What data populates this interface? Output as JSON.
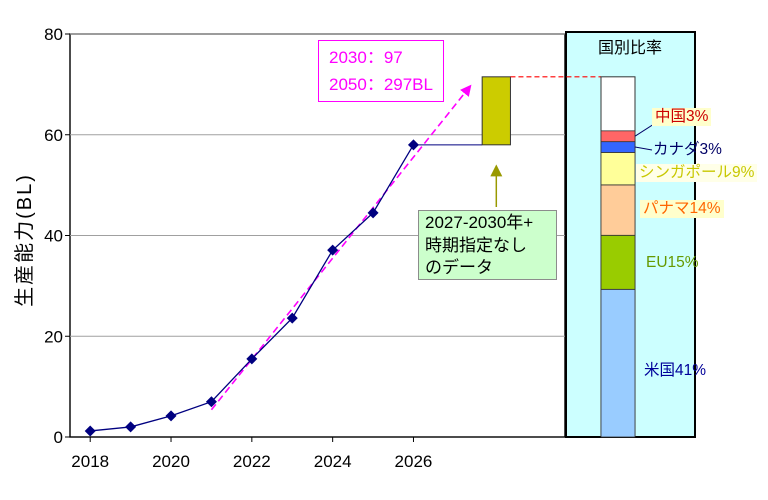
{
  "chart_data": [
    {
      "type": "line",
      "ylabel": "生産能力(BL)",
      "xlim": [
        2017.5,
        2029.75
      ],
      "ylim": [
        0,
        80
      ],
      "x_ticks": [
        2018,
        2020,
        2022,
        2024,
        2026
      ],
      "y_ticks": [
        0,
        20,
        40,
        60,
        80
      ],
      "grid": "horizontal",
      "series": [
        {
          "x": [
            2018,
            2019,
            2020,
            2021,
            2022,
            2023,
            2024,
            2025,
            2026
          ],
          "values": [
            1.2,
            2,
            4.2,
            7,
            15.5,
            23.6,
            37.1,
            44.5,
            58
          ],
          "color": "#000080",
          "marker": "diamond"
        }
      ],
      "trend_arrow": {
        "from": [
          2021,
          5.4
        ],
        "to": [
          2027.4,
          69.6
        ],
        "color": "#ff00ff"
      },
      "range_box": {
        "x": [
          2027.7,
          2028.4
        ],
        "low": 58,
        "high": 71.5,
        "color": "#cccc00"
      },
      "annotations": {
        "projection": [
          "2030：97",
          "2050：297BL"
        ],
        "range_box_note": [
          "2027-2030年+",
          "時期指定なし",
          "のデータ"
        ]
      }
    },
    {
      "type": "bar",
      "stacked": true,
      "title": "国別比率",
      "segments": [
        {
          "label": "米国41%",
          "value": 41,
          "color": "#99ccff",
          "text_color": "#000099"
        },
        {
          "label": "EU15%",
          "value": 15,
          "color": "#99cc00",
          "text_color": "#669900"
        },
        {
          "label": "パナマ14%",
          "value": 14,
          "color": "#ffcc99",
          "text_color": "#ff6600"
        },
        {
          "label": "シンガポール9%",
          "value": 9,
          "color": "#ffff99",
          "text_color": "#c8c800"
        },
        {
          "label": "カナダ3%",
          "value": 3,
          "color": "#3366ff",
          "text_color": "#000066"
        },
        {
          "label": "中国3%",
          "value": 3,
          "color": "#ff6666",
          "text_color": "#cc0000"
        }
      ]
    }
  ]
}
